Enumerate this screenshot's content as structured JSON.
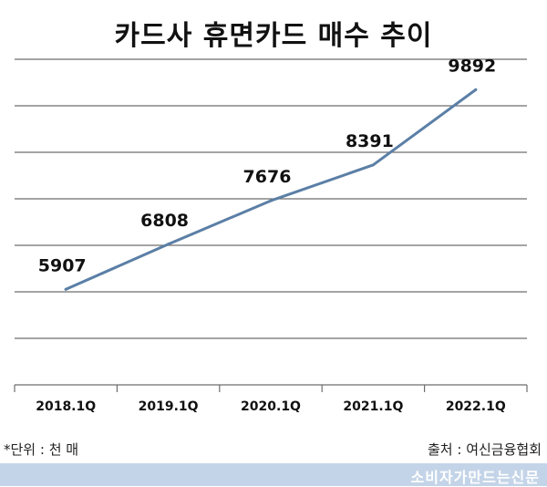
{
  "chart_data": {
    "type": "line",
    "title": "카드사 휴면카드 매수 추이",
    "categories": [
      "2018.1Q",
      "2019.1Q",
      "2020.1Q",
      "2021.1Q",
      "2022.1Q"
    ],
    "series": [
      {
        "values": [
          5907,
          6808,
          7676,
          8391,
          9892
        ]
      }
    ],
    "data_labels": [
      "5907",
      "6808",
      "7676",
      "8391",
      "9892"
    ],
    "ylim": [
      4000,
      10500
    ],
    "grid": true,
    "line_color": "#5b7fa6"
  },
  "notes": {
    "unit": "*단위 : 천 매",
    "source": "출처 : 여신금융협회"
  },
  "footer": {
    "brand": "소비자가만드는신문"
  }
}
